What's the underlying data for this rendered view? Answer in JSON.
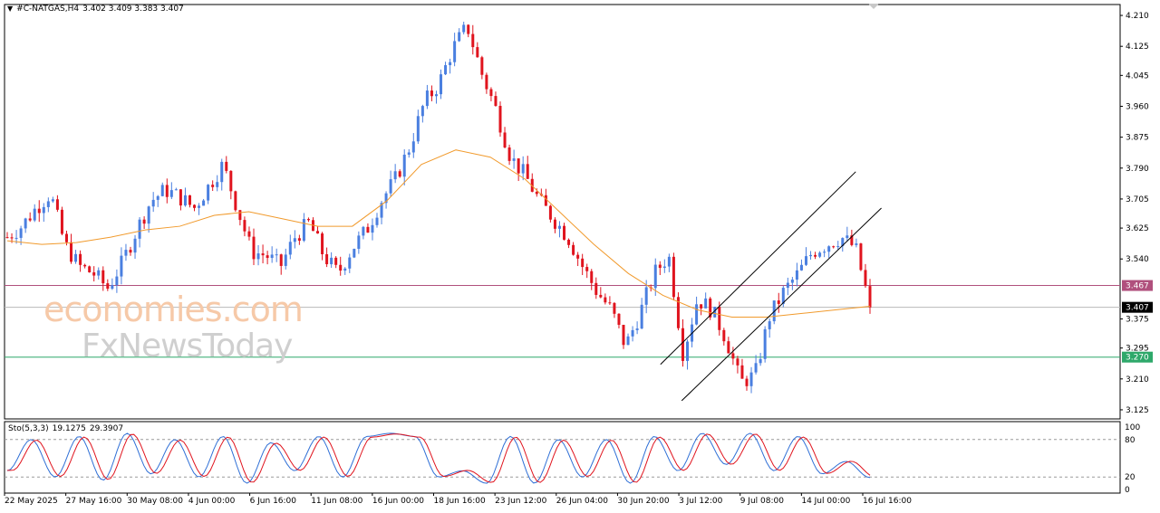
{
  "header": {
    "symbol": "#C-NATGAS,H4",
    "ohlc": "3.402 3.409 3.383 3.407",
    "arrow_icon": "triangle-down-icon"
  },
  "watermark": {
    "line1": "economies.com",
    "line2": "FxNewsToday"
  },
  "colors": {
    "bull": "#4a7fe0",
    "bear": "#e0141e",
    "ma": "#f19a2c",
    "resistance": "#b0507d",
    "support": "#2ea86a",
    "current": "#b8b8b8",
    "stoch_main": "#2f6fd6",
    "stoch_signal": "#e0141e"
  },
  "stochastic": {
    "label": "Sto(5,3,3)",
    "main_value": "19.1275",
    "signal_value": "29.3907",
    "axis_labels": [
      "100",
      "80",
      "20",
      "0"
    ]
  },
  "chart_data": {
    "type": "candlestick",
    "title": "#C-NATGAS,H4",
    "ylim": [
      3.1,
      4.24
    ],
    "y_ticks": [
      "4.210",
      "4.125",
      "4.045",
      "3.960",
      "3.875",
      "3.790",
      "3.705",
      "3.625",
      "3.540",
      "3.375",
      "3.295",
      "3.210",
      "3.125"
    ],
    "x_labels": [
      "22 May 2025",
      "27 May 16:00",
      "30 May 08:00",
      "4 Jun 00:00",
      "6 Jun 16:00",
      "11 Jun 08:00",
      "16 Jun 00:00",
      "18 Jun 16:00",
      "23 Jun 12:00",
      "26 Jun 04:00",
      "30 Jun 20:00",
      "3 Jul 12:00",
      "9 Jul 08:00",
      "14 Jul 00:00",
      "16 Jul 16:00"
    ],
    "levels": {
      "resistance": {
        "value": 3.467,
        "label": "3.467"
      },
      "current": {
        "value": 3.407,
        "label": "3.407"
      },
      "support": {
        "value": 3.27,
        "label": "3.270"
      }
    },
    "anchors": [
      3.6,
      3.63,
      3.68,
      3.72,
      3.58,
      3.52,
      3.5,
      3.46,
      3.53,
      3.62,
      3.7,
      3.73,
      3.71,
      3.68,
      3.74,
      3.8,
      3.68,
      3.56,
      3.55,
      3.52,
      3.6,
      3.64,
      3.55,
      3.5,
      3.57,
      3.62,
      3.7,
      3.76,
      3.85,
      3.97,
      4.02,
      4.12,
      4.18,
      4.05,
      3.95,
      3.82,
      3.77,
      3.7,
      3.65,
      3.6,
      3.52,
      3.45,
      3.4,
      3.3,
      3.39,
      3.5,
      3.55,
      3.28,
      3.43,
      3.4,
      3.32,
      3.2,
      3.22,
      3.38,
      3.45,
      3.5,
      3.56,
      3.58,
      3.6,
      3.57,
      3.407
    ],
    "moving_average": {
      "name": "MA",
      "values": [
        3.59,
        3.58,
        3.585,
        3.6,
        3.62,
        3.63,
        3.66,
        3.67,
        3.65,
        3.63,
        3.63,
        3.7,
        3.8,
        3.84,
        3.82,
        3.76,
        3.67,
        3.58,
        3.5,
        3.44,
        3.4,
        3.38,
        3.38,
        3.39,
        3.4,
        3.41
      ]
    },
    "channel": {
      "lower": [
        [
          0.607,
          3.15
        ],
        [
          0.786,
          3.68
        ]
      ],
      "upper": [
        [
          0.588,
          3.25
        ],
        [
          0.763,
          3.78
        ]
      ]
    },
    "stoch_anchors": [
      30,
      80,
      20,
      85,
      15,
      90,
      25,
      80,
      20,
      85,
      10,
      75,
      30,
      85,
      20,
      85,
      90,
      85,
      20,
      30,
      10,
      85,
      10,
      80,
      20,
      80,
      10,
      85,
      30,
      90,
      40,
      90,
      30,
      85,
      25,
      45,
      19
    ]
  }
}
